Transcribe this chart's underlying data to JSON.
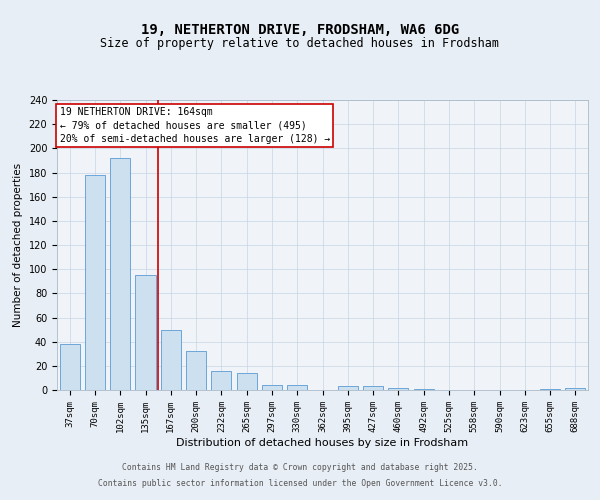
{
  "title1": "19, NETHERTON DRIVE, FRODSHAM, WA6 6DG",
  "title2": "Size of property relative to detached houses in Frodsham",
  "xlabel": "Distribution of detached houses by size in Frodsham",
  "ylabel": "Number of detached properties",
  "categories": [
    "37sqm",
    "70sqm",
    "102sqm",
    "135sqm",
    "167sqm",
    "200sqm",
    "232sqm",
    "265sqm",
    "297sqm",
    "330sqm",
    "362sqm",
    "395sqm",
    "427sqm",
    "460sqm",
    "492sqm",
    "525sqm",
    "558sqm",
    "590sqm",
    "623sqm",
    "655sqm",
    "688sqm"
  ],
  "values": [
    38,
    178,
    192,
    95,
    50,
    32,
    16,
    14,
    4,
    4,
    0,
    3,
    3,
    2,
    1,
    0,
    0,
    0,
    0,
    1,
    2
  ],
  "bar_color": "#cce0f0",
  "bar_edge_color": "#5b9bd5",
  "vline_color": "#cc0000",
  "vline_pos": 3.5,
  "annotation_text": "19 NETHERTON DRIVE: 164sqm\n← 79% of detached houses are smaller (495)\n20% of semi-detached houses are larger (128) →",
  "annotation_box_color": "#ffffff",
  "annotation_box_edge": "#cc0000",
  "ylim": [
    0,
    240
  ],
  "yticks": [
    0,
    20,
    40,
    60,
    80,
    100,
    120,
    140,
    160,
    180,
    200,
    220,
    240
  ],
  "footer_line1": "Contains HM Land Registry data © Crown copyright and database right 2025.",
  "footer_line2": "Contains public sector information licensed under the Open Government Licence v3.0.",
  "bg_color": "#e8eef5",
  "plot_bg_color": "#f0f4f8",
  "grid_color": "#c5d5e5",
  "title1_fontsize": 10,
  "title2_fontsize": 8.5,
  "xlabel_fontsize": 8,
  "ylabel_fontsize": 7.5,
  "tick_fontsize": 6.5,
  "ann_fontsize": 7,
  "footer_fontsize": 5.8
}
